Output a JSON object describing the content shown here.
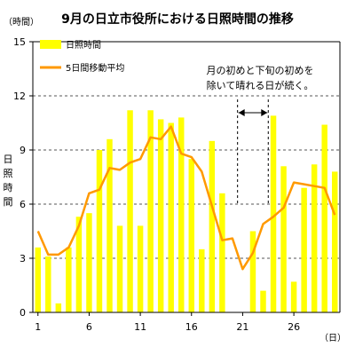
{
  "chart_data": {
    "type": "bar",
    "title": "9月の日立市役所における日照時間の推移",
    "y_unit": "（時間）",
    "ylabel": "日照時間",
    "x_unit": "（日）",
    "ylim": [
      0,
      15
    ],
    "y_ticks": [
      "0",
      "3",
      "6",
      "9",
      "12",
      "15"
    ],
    "x_tick_labels": [
      {
        "day": 1,
        "label": "1"
      },
      {
        "day": 6,
        "label": "6"
      },
      {
        "day": 11,
        "label": "11"
      },
      {
        "day": 16,
        "label": "16"
      },
      {
        "day": 21,
        "label": "21"
      },
      {
        "day": 26,
        "label": "26"
      }
    ],
    "grid": true,
    "legend_position": "top-left",
    "x": [
      1,
      2,
      3,
      4,
      5,
      6,
      7,
      8,
      9,
      10,
      11,
      12,
      13,
      14,
      15,
      16,
      17,
      18,
      19,
      20,
      21,
      22,
      23,
      24,
      25,
      26,
      27,
      28,
      29,
      30
    ],
    "series": [
      {
        "name": "日照時間",
        "type": "bar",
        "color": "#ffff00",
        "values": [
          3.6,
          3.1,
          0.5,
          3.6,
          5.3,
          5.5,
          9.0,
          9.6,
          4.8,
          11.2,
          4.8,
          11.2,
          10.7,
          10.5,
          10.8,
          8.5,
          3.5,
          9.5,
          6.6,
          0.0,
          0.0,
          4.5,
          1.2,
          10.9,
          8.1,
          1.7,
          6.9,
          8.2,
          10.4,
          7.8
        ]
      },
      {
        "name": "5日間移動平均",
        "type": "line",
        "color": "#ff9900",
        "values": [
          4.5,
          3.2,
          3.2,
          3.6,
          4.8,
          6.6,
          6.8,
          8.0,
          7.9,
          8.3,
          8.5,
          9.7,
          9.6,
          10.3,
          8.8,
          8.6,
          7.8,
          5.9,
          4.0,
          4.1,
          2.4,
          3.3,
          4.9,
          5.3,
          5.8,
          7.2,
          7.1,
          7.0,
          6.9,
          5.4
        ]
      }
    ],
    "annotation": {
      "lines": [
        "月の初めと下旬の初めを",
        "除いて晴れる日が続く。"
      ],
      "bracket_days": [
        20.5,
        23.5
      ]
    }
  }
}
